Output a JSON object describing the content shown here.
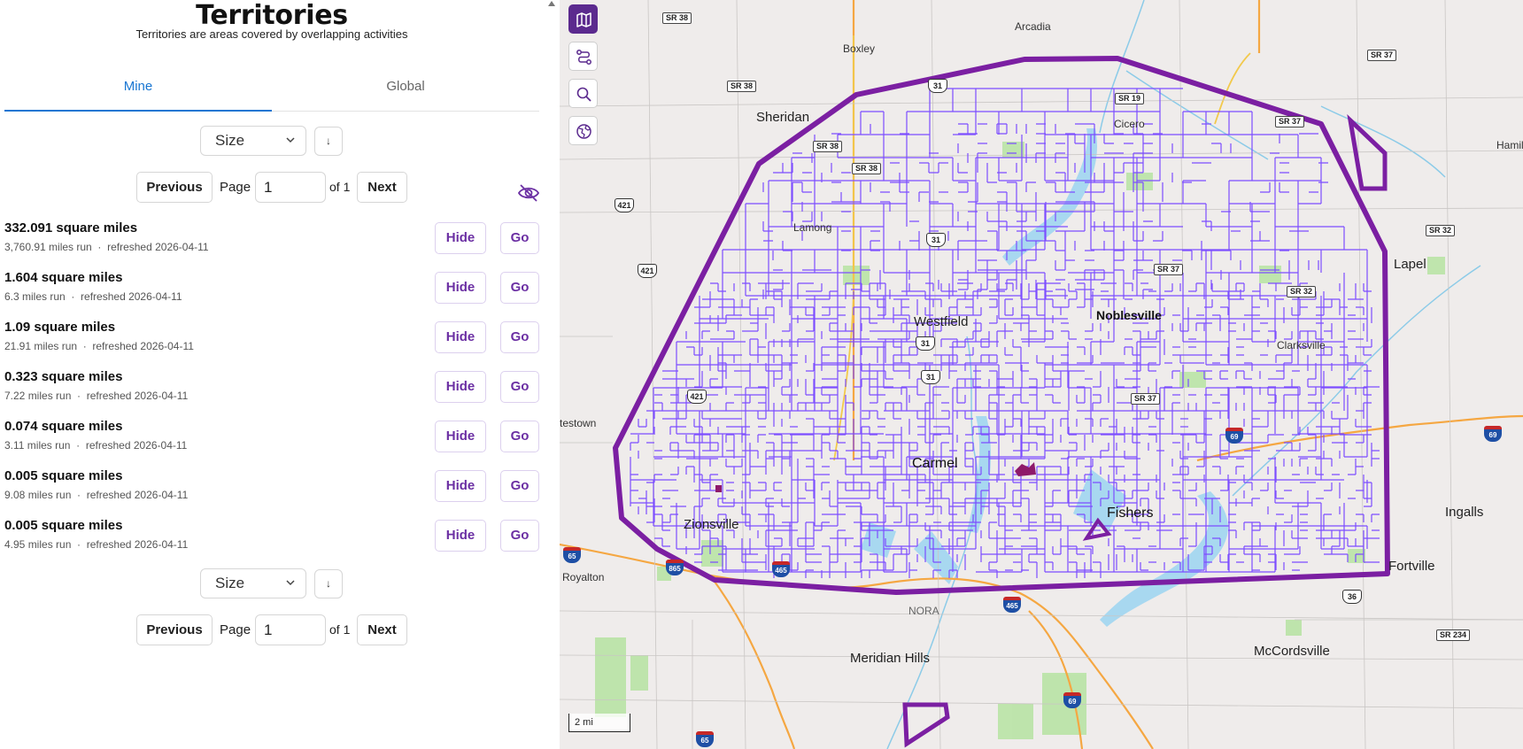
{
  "header": {
    "title": "Territories",
    "subtitle": "Territories are areas covered by overlapping activities"
  },
  "tabs": [
    {
      "label": "Mine",
      "active": true
    },
    {
      "label": "Global",
      "active": false
    }
  ],
  "sort": {
    "selected": "Size",
    "direction_icon": "↓"
  },
  "pagination": {
    "previous_label": "Previous",
    "page_label": "Page",
    "page_value": "1",
    "of_label": "of 1",
    "next_label": "Next"
  },
  "hide_all_icon": "eye-off-icon",
  "territories": [
    {
      "area": "332.091 square miles",
      "miles": "3,760.91 miles run",
      "refreshed": "refreshed 2026-04-11"
    },
    {
      "area": "1.604 square miles",
      "miles": "6.3 miles run",
      "refreshed": "refreshed 2026-04-11"
    },
    {
      "area": "1.09 square miles",
      "miles": "21.91 miles run",
      "refreshed": "refreshed 2026-04-11"
    },
    {
      "area": "0.323 square miles",
      "miles": "7.22 miles run",
      "refreshed": "refreshed 2026-04-11"
    },
    {
      "area": "0.074 square miles",
      "miles": "3.11 miles run",
      "refreshed": "refreshed 2026-04-11"
    },
    {
      "area": "0.005 square miles",
      "miles": "9.08 miles run",
      "refreshed": "refreshed 2026-04-11"
    },
    {
      "area": "0.005 square miles",
      "miles": "4.95 miles run",
      "refreshed": "refreshed 2026-04-11"
    }
  ],
  "row_actions": {
    "hide_label": "Hide",
    "go_label": "Go",
    "separator": "·"
  },
  "map": {
    "controls": [
      "map-icon",
      "route-icon",
      "search-icon",
      "globe-icon"
    ],
    "scale": "2 mi",
    "places": {
      "arcadia": "Arcadia",
      "boxley": "Boxley",
      "sheridan": "Sheridan",
      "cicero": "Cicero",
      "lamong": "Lamong",
      "westfield": "Westfield",
      "noblesville": "Noblesville",
      "lapel": "Lapel",
      "clarksville": "Clarksville",
      "hamilton": "Hamil",
      "carmel": "Carmel",
      "fishers": "Fishers",
      "zionsville": "Zionsville",
      "ingalls": "Ingalls",
      "fortville": "Fortville",
      "royalton": "Royalton",
      "nora": "NORA",
      "meridian_hills": "Meridian Hills",
      "mccordsville": "McCordsville",
      "whitestown": "testown"
    },
    "shields": {
      "sr38_top": "SR 38",
      "sr38_left": "SR 38",
      "sr38_a": "SR 38",
      "sr38_b": "SR 38",
      "sr37_top": "SR 37",
      "sr37_right": "SR 37",
      "sr37_mid": "SR 37",
      "sr37_low": "SR 37",
      "sr19": "SR 19",
      "sr32_right": "SR 32",
      "sr32_mid": "SR 32",
      "sr234": "SR 234",
      "us31_top": "31",
      "us31_a": "31",
      "us31_b": "31",
      "us31_c": "31",
      "us421_a": "421",
      "us421_b": "421",
      "us421_c": "421",
      "us36": "36",
      "i69_a": "69",
      "i69_b": "69",
      "i69_c": "69",
      "i465_a": "465",
      "i465_b": "465",
      "i865": "865",
      "i65_a": "65",
      "i65_b": "65"
    },
    "colors": {
      "territory": "#7b1fa2",
      "activity": "#7c4dff",
      "water": "#a8d8f0",
      "park": "#b5e3a1",
      "highway": "#f5a742",
      "background": "#efeceb"
    }
  }
}
